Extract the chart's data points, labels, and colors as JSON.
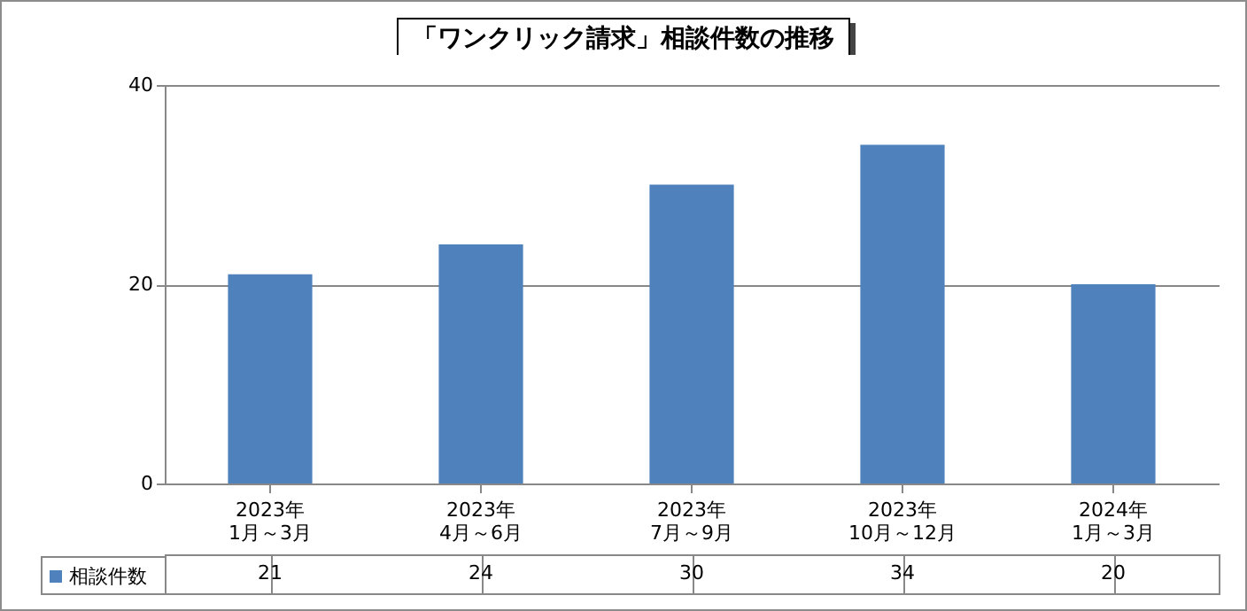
{
  "chart_data": {
    "type": "bar",
    "title": "「ワンクリック請求」相談件数の推移",
    "categories": [
      "2023年\n1月～3月",
      "2023年\n4月～6月",
      "2023年\n7月～9月",
      "2023年\n10月～12月",
      "2024年\n1月～3月"
    ],
    "series": [
      {
        "name": "相談件数",
        "color": "#4f81bd",
        "values": [
          21,
          24,
          30,
          34,
          20
        ]
      }
    ],
    "ylim": [
      0,
      40
    ],
    "yticks": [
      0,
      20,
      40
    ],
    "grid": "y",
    "legend": "bottom left",
    "data_labels": true
  }
}
